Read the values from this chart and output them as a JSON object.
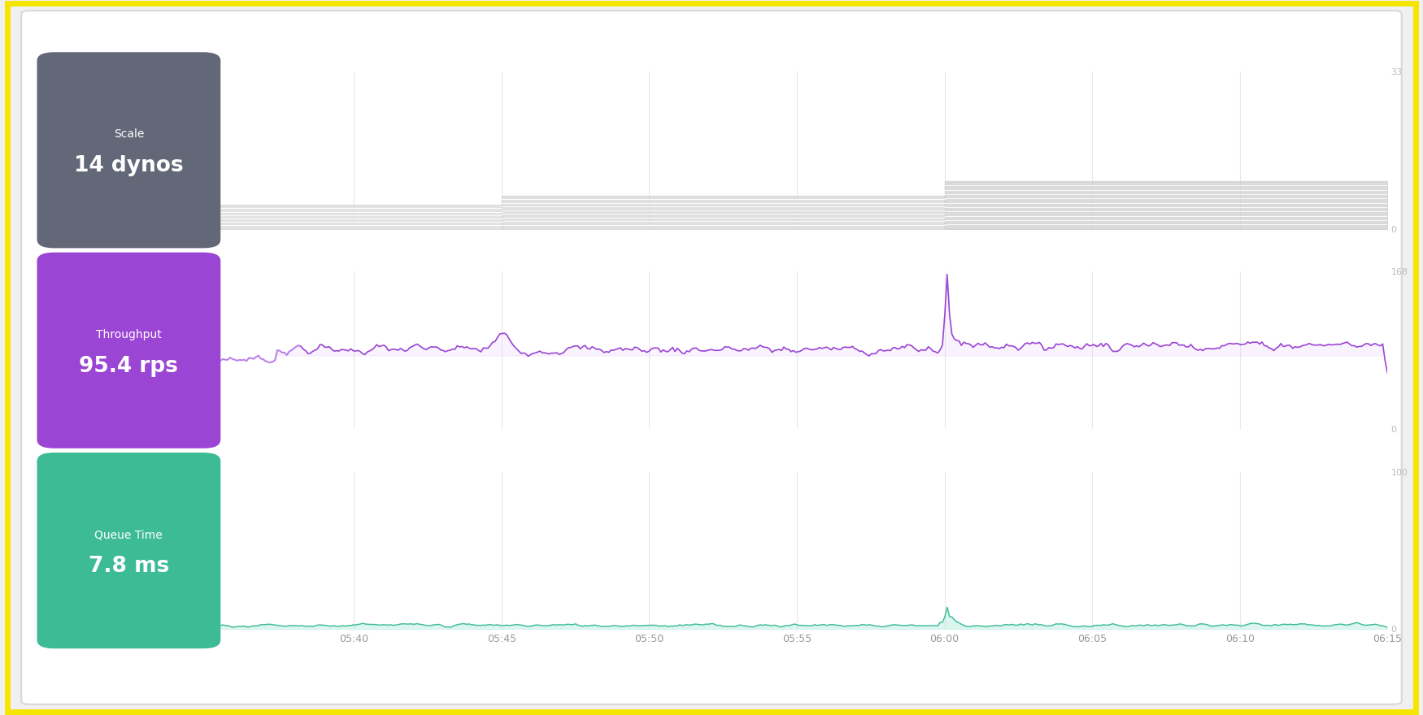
{
  "bg_color": "#f0f0f0",
  "border_color": "#f5e500",
  "border_width": 5,
  "card_scale_color": "#636878",
  "card_scale_label": "Scale",
  "card_scale_value": "14 dynos",
  "card_throughput_color": "#9b45d4",
  "card_throughput_label": "Throughput",
  "card_throughput_value": "95.4 rps",
  "card_queue_color": "#3dbb95",
  "card_queue_label": "Queue Time",
  "card_queue_value": "7.8 ms",
  "x_ticks": [
    "05:40",
    "05:45",
    "05:50",
    "05:55",
    "06:00",
    "06:05",
    "06:10",
    "06:15"
  ],
  "scale_ylim": [
    0,
    33
  ],
  "scale_yticks": [
    0,
    33
  ],
  "throughput_ylim": [
    0,
    168
  ],
  "throughput_yticks": [
    0,
    168
  ],
  "queue_ylim": [
    0,
    100
  ],
  "queue_yticks": [
    0,
    100
  ],
  "throughput_line_color": "#9b45d4",
  "throughput_fill_color": "#d8b4f8",
  "queue_line_color": "#3dbb95",
  "queue_fill_color": "#a8e8d8",
  "chart_bg": "#ffffff",
  "grid_color": "#e8e8e8"
}
